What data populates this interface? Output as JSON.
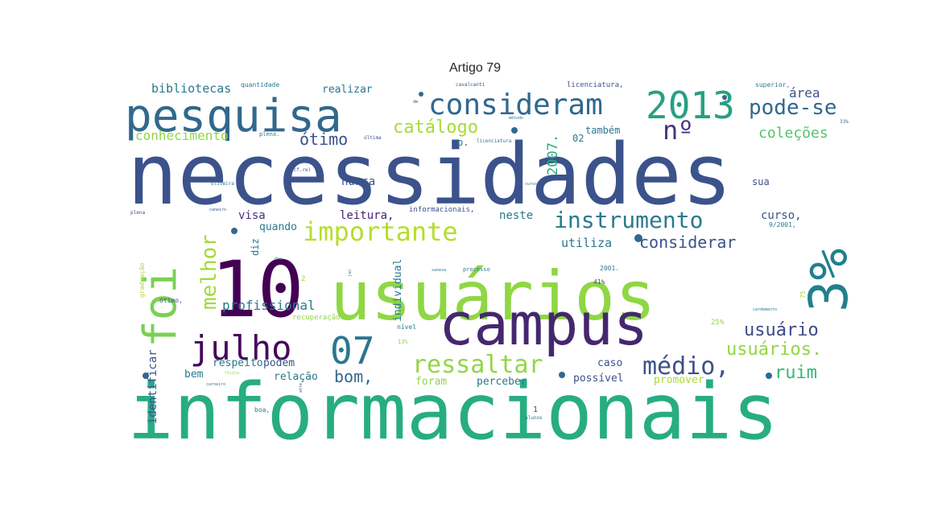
{
  "title": "Artigo 79",
  "palette": {
    "purple": "#440154",
    "indigo": "#3b528b",
    "teal": "#21918c",
    "green": "#27ad81",
    "lime": "#8fd744",
    "yellow": "#d3e32c",
    "blue": "#31688e"
  },
  "words": [
    {
      "text": "necessidades",
      "color": "#3b528b"
    },
    {
      "text": "informacionais",
      "color": "#27ad81"
    },
    {
      "text": "usuários",
      "color": "#8fd744"
    },
    {
      "text": "campus",
      "color": "#45276f"
    },
    {
      "text": "10",
      "color": "#440154"
    },
    {
      "text": "3%",
      "color": "#21808c"
    },
    {
      "text": "pesquisa",
      "color": "#31688e"
    },
    {
      "text": "2013",
      "color": "#27a082"
    },
    {
      "text": "foi",
      "color": "#7ad151"
    },
    {
      "text": "julho",
      "color": "#46075a"
    },
    {
      "text": "07",
      "color": "#2a778e"
    },
    {
      "text": "consideram",
      "color": "#31688e"
    },
    {
      "text": "importante",
      "color": "#b5de2b"
    },
    {
      "text": "instrumento",
      "color": "#2a7a8e"
    },
    {
      "text": "ressaltar",
      "color": "#90d743"
    },
    {
      "text": "médio,",
      "color": "#3b528b"
    },
    {
      "text": "pode-se",
      "color": "#31688e"
    },
    {
      "text": "nº",
      "color": "#46337e"
    },
    {
      "text": "melhor",
      "color": "#a2da37"
    },
    {
      "text": "catálogo",
      "color": "#a8db34"
    },
    {
      "text": "ótimo",
      "color": "#3b528b"
    },
    {
      "text": "usuário",
      "color": "#3e4a89"
    },
    {
      "text": "usuários.",
      "color": "#8fd744"
    },
    {
      "text": "considerar",
      "color": "#3b528b"
    },
    {
      "text": "bom,",
      "color": "#31688e"
    },
    {
      "text": "ruim",
      "color": "#35b779"
    },
    {
      "text": "profissional",
      "color": "#2a788e"
    },
    {
      "text": "coleções",
      "color": "#52c569"
    },
    {
      "text": "conhecimento",
      "color": "#8fd744"
    },
    {
      "text": "bibliotecas",
      "color": "#2a788e"
    },
    {
      "text": "área",
      "color": "#3b528b"
    },
    {
      "text": "2007.",
      "color": "#27ad81"
    },
    {
      "text": "visa",
      "color": "#472d7b"
    },
    {
      "text": "leitura,",
      "color": "#482173"
    },
    {
      "text": "neste",
      "color": "#2a788e"
    },
    {
      "text": "utiliza",
      "color": "#2a788e"
    },
    {
      "text": "curso,",
      "color": "#3b528b"
    },
    {
      "text": "quando",
      "color": "#2a788e"
    },
    {
      "text": "nunca",
      "color": "#3b528b"
    },
    {
      "text": "individual",
      "color": "#2a788e"
    },
    {
      "text": "identificar",
      "color": "#3b528b"
    },
    {
      "text": "respeito",
      "color": "#2a788e"
    },
    {
      "text": "podem",
      "color": "#3b528b"
    },
    {
      "text": "relação",
      "color": "#2a788e"
    },
    {
      "text": "bem",
      "color": "#2a788e"
    },
    {
      "text": "foram",
      "color": "#8fd744"
    },
    {
      "text": "perceber",
      "color": "#2a788e"
    },
    {
      "text": "possível",
      "color": "#3b528b"
    },
    {
      "text": "promover",
      "color": "#a8db34"
    },
    {
      "text": "caso",
      "color": "#3b528b"
    },
    {
      "text": "realizar",
      "color": "#2a788e"
    },
    {
      "text": "também",
      "color": "#2a788e"
    },
    {
      "text": "02",
      "color": "#2a788e"
    },
    {
      "text": "sua",
      "color": "#3b528b"
    },
    {
      "text": "p.",
      "color": "#2a788e"
    },
    {
      "text": "diz",
      "color": "#2a788e"
    },
    {
      "text": "quantidade",
      "color": "#2a788e"
    },
    {
      "text": "licenciatura,",
      "color": "#3b528b"
    },
    {
      "text": "superior,",
      "color": "#2a788e"
    },
    {
      "text": "informacionais,",
      "color": "#3b528b"
    },
    {
      "text": "recuperação.",
      "color": "#8fd744"
    },
    {
      "text": "nível",
      "color": "#2a788e"
    },
    {
      "text": "ótimo,",
      "color": "#3b528b"
    },
    {
      "text": "boa,",
      "color": "#2a788e"
    },
    {
      "text": "25%",
      "color": "#8fd744"
    },
    {
      "text": "2001.",
      "color": "#2a788e"
    },
    {
      "text": "41%",
      "color": "#3b528b"
    },
    {
      "text": "9/2001,",
      "color": "#2a788e"
    },
    {
      "text": "graduação",
      "color": "#a8db34"
    },
    {
      "text": "plena.",
      "color": "#2a788e"
    },
    {
      "text": "última",
      "color": "#3b528b"
    },
    {
      "text": "licenciatura",
      "color": "#2a788e"
    },
    {
      "text": "processo",
      "color": "#2a788e"
    },
    {
      "text": "plena",
      "color": "#3b528b"
    },
    {
      "text": "oliveira",
      "color": "#2a788e"
    },
    {
      "text": "(cf.re)",
      "color": "#3b528b"
    },
    {
      "text": "13%",
      "color": "#8fd744"
    },
    {
      "text": "alunos",
      "color": "#2a788e"
    },
    {
      "text": "1",
      "color": "#3b528b"
    },
    {
      "text": "75",
      "color": "#a8db34"
    },
    {
      "text": "33%",
      "color": "#2a788e"
    },
    {
      "text": "cavalcanti",
      "color": "#3b528b"
    },
    {
      "text": "método",
      "color": "#2a788e"
    },
    {
      "text": "curso",
      "color": "#2a788e"
    },
    {
      "text": "2",
      "color": "#8fd744"
    },
    {
      "text": "3",
      "color": "#3b528b"
    },
    {
      "text": "dos",
      "color": "#2a788e"
    },
    {
      "text": "atre",
      "color": "#3b528b"
    },
    {
      "text": "física",
      "color": "#8fd744"
    },
    {
      "text": "carneiro",
      "color": "#2a788e"
    },
    {
      "text": "cardemento",
      "color": "#2a788e"
    },
    {
      "text": "caneiro",
      "color": "#3b528b"
    },
    {
      "text": "saneva",
      "color": "#2a788e"
    },
    {
      "text": "jaú",
      "color": "#2a788e"
    },
    {
      "text": "dm",
      "color": "#3b528b"
    },
    {
      "text": "de",
      "color": "#2a788e"
    }
  ]
}
